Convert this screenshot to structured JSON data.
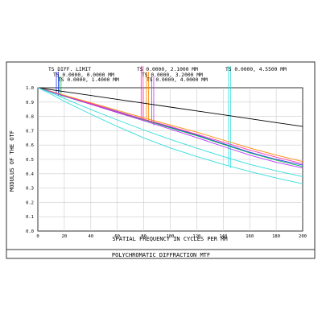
{
  "chart_data": {
    "type": "line",
    "title": "POLYCHROMATIC DIFFRACTION MTF",
    "xlabel": "SPATIAL FREQUENCY IN CYCLES PER MM",
    "ylabel": "MODULUS OF THE OTF",
    "xlim": [
      0,
      200
    ],
    "ylim": [
      0,
      1
    ],
    "grid": true,
    "x_ticks": [
      "0",
      "20",
      "40",
      "60",
      "80",
      "100",
      "120",
      "140",
      "160",
      "180",
      "200"
    ],
    "y_ticks": [
      "0.0",
      "0.1",
      "0.2",
      "0.3",
      "0.4",
      "0.5",
      "0.6",
      "0.7",
      "0.8",
      "0.9",
      "1.0"
    ],
    "legend": [
      {
        "label": "TS DIFF. LIMIT",
        "color": "#000000",
        "x_marker": null
      },
      {
        "label": "TS 0.0000, 0.0000 MM",
        "color": "#3333ff",
        "x_marker": 14
      },
      {
        "label": "TS 0.0000, 1.4000 MM",
        "color": "#00bb44",
        "x_marker": 16
      },
      {
        "label": "TS 0.0000, 2.1000 MM",
        "color": "#ff33aa",
        "x_marker": 78
      },
      {
        "label": "TS 0.0000, 3.2000 MM",
        "color": "#ff8800",
        "x_marker": 82
      },
      {
        "label": "TS 0.0000, 4.0000 MM",
        "color": "#bb33ff",
        "x_marker": 86
      },
      {
        "label": "TS 0.0000, 4.5500 MM",
        "color": "#33dddd",
        "x_marker": 144
      }
    ],
    "series": [
      {
        "name": "TS DIFF. LIMIT",
        "color": "#000000",
        "x": [
          0,
          20,
          40,
          60,
          80,
          100,
          120,
          140,
          160,
          180,
          200
        ],
        "y": [
          1.0,
          0.973,
          0.946,
          0.919,
          0.892,
          0.865,
          0.838,
          0.811,
          0.784,
          0.757,
          0.73
        ]
      },
      {
        "name": "TS 0.0000, 0.0000 MM",
        "color": "#3333ff",
        "x": [
          0,
          10,
          20,
          40,
          60,
          80,
          100,
          120,
          140,
          160,
          180,
          200
        ],
        "y": [
          1.0,
          0.975,
          0.945,
          0.89,
          0.835,
          0.78,
          0.725,
          0.67,
          0.61,
          0.55,
          0.5,
          0.46
        ]
      },
      {
        "name": "TS 0.0000, 1.4000 MM",
        "color": "#00bb44",
        "x": [
          0,
          10,
          20,
          40,
          60,
          80,
          100,
          120,
          140,
          160,
          180,
          200
        ],
        "y": [
          1.0,
          0.97,
          0.94,
          0.885,
          0.828,
          0.775,
          0.72,
          0.665,
          0.605,
          0.545,
          0.495,
          0.45
        ]
      },
      {
        "name": "TS 0.0000, 2.1000 MM",
        "color": "#ff33aa",
        "x": [
          0,
          10,
          20,
          40,
          60,
          80,
          100,
          120,
          140,
          160,
          180,
          200
        ],
        "y": [
          1.0,
          0.972,
          0.945,
          0.89,
          0.832,
          0.78,
          0.73,
          0.675,
          0.62,
          0.565,
          0.515,
          0.47
        ]
      },
      {
        "name": "TS 0.0000, 3.2000 MM",
        "color": "#ff8800",
        "x": [
          0,
          10,
          20,
          40,
          60,
          80,
          100,
          120,
          140,
          160,
          180,
          200
        ],
        "y": [
          1.0,
          0.974,
          0.948,
          0.895,
          0.842,
          0.79,
          0.74,
          0.69,
          0.635,
          0.58,
          0.53,
          0.485
        ]
      },
      {
        "name": "TS 0.0000, 4.0000 MM",
        "color": "#bb33ff",
        "x": [
          0,
          10,
          20,
          40,
          60,
          80,
          100,
          120,
          140,
          160,
          180,
          200
        ],
        "y": [
          1.0,
          0.971,
          0.942,
          0.884,
          0.826,
          0.77,
          0.712,
          0.652,
          0.59,
          0.53,
          0.48,
          0.44
        ]
      },
      {
        "name": "TS 0.0000, 4.5500 MM",
        "color": "#33dddd",
        "x": [
          0,
          10,
          20,
          40,
          60,
          80,
          100,
          120,
          140,
          160,
          180,
          200
        ],
        "y": [
          1.0,
          0.955,
          0.905,
          0.815,
          0.73,
          0.65,
          0.58,
          0.52,
          0.465,
          0.415,
          0.37,
          0.33
        ]
      },
      {
        "name": "TS 0.0000, 4.5500 MM",
        "color": "#33dddd",
        "x": [
          0,
          10,
          20,
          40,
          60,
          80,
          100,
          120,
          140,
          160,
          180,
          200
        ],
        "y": [
          1.0,
          0.965,
          0.925,
          0.848,
          0.775,
          0.705,
          0.64,
          0.578,
          0.52,
          0.465,
          0.42,
          0.38
        ]
      }
    ]
  }
}
